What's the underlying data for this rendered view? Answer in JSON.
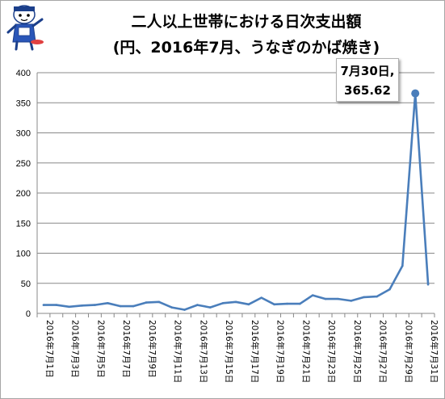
{
  "chart_data": {
    "type": "line",
    "title": "二人以上世帯における日次支出額",
    "subtitle": "(円、2016年7月、うなぎのかば焼き)",
    "xlabel": "",
    "ylabel": "",
    "ylim": [
      0,
      400
    ],
    "yticks": [
      "0",
      "50",
      "100",
      "150",
      "200",
      "250",
      "300",
      "350",
      "400"
    ],
    "grid": true,
    "legend": "none",
    "series_color": "#4a7ebb",
    "x": [
      "2016年7月1日",
      "2016年7月2日",
      "2016年7月3日",
      "2016年7月4日",
      "2016年7月5日",
      "2016年7月6日",
      "2016年7月7日",
      "2016年7月8日",
      "2016年7月9日",
      "2016年7月10日",
      "2016年7月11日",
      "2016年7月12日",
      "2016年7月13日",
      "2016年7月14日",
      "2016年7月15日",
      "2016年7月16日",
      "2016年7月17日",
      "2016年7月18日",
      "2016年7月19日",
      "2016年7月20日",
      "2016年7月21日",
      "2016年7月22日",
      "2016年7月23日",
      "2016年7月24日",
      "2016年7月25日",
      "2016年7月26日",
      "2016年7月27日",
      "2016年7月28日",
      "2016年7月29日",
      "2016年7月30日",
      "2016年7月31日"
    ],
    "x_tick_labels": [
      "2016年7月1日",
      "2016年7月3日",
      "2016年7月5日",
      "2016年7月7日",
      "2016年7月9日",
      "2016年7月11日",
      "2016年7月13日",
      "2016年7月15日",
      "2016年7月17日",
      "2016年7月19日",
      "2016年7月21日",
      "2016年7月23日",
      "2016年7月25日",
      "2016年7月27日",
      "2016年7月29日",
      "2016年7月31日"
    ],
    "values": [
      14,
      14,
      11,
      13,
      14,
      17,
      12,
      12,
      18,
      19,
      10,
      6,
      14,
      10,
      17,
      19,
      15,
      26,
      15,
      16,
      16,
      30,
      24,
      24,
      21,
      27,
      28,
      40,
      79,
      365.62,
      48
    ],
    "annotation": {
      "line1": "7月30日,",
      "line2": "365.62",
      "point_index": 29
    }
  }
}
